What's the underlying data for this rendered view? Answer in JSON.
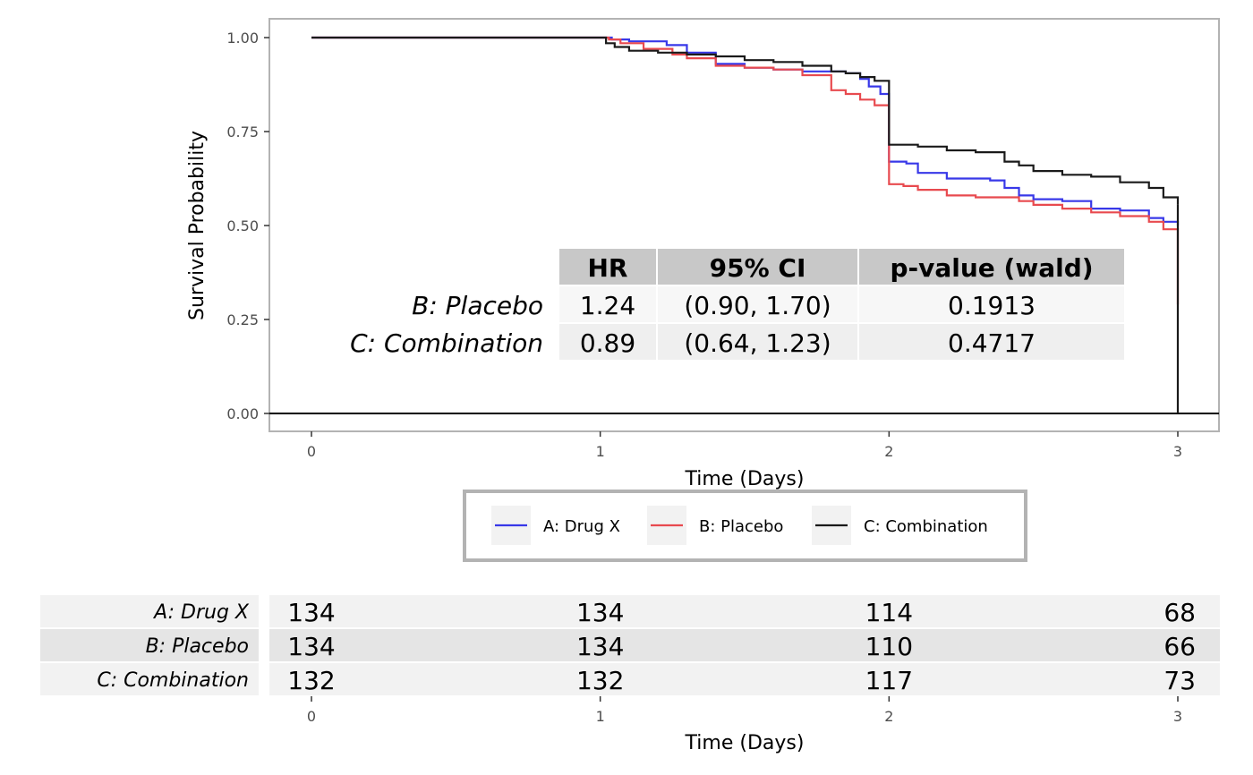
{
  "chart_data": {
    "type": "line",
    "xlabel": "Time (Days)",
    "ylabel": "Survival Probability",
    "xlim": [
      0,
      3
    ],
    "ylim": [
      0,
      1
    ],
    "x_ticks": [
      "0",
      "1",
      "2",
      "3"
    ],
    "y_ticks": [
      "0.00",
      "0.25",
      "0.50",
      "0.75",
      "1.00"
    ],
    "grid": false,
    "legend": "bottom",
    "colors": {
      "A: Drug X": "#3838e8",
      "B: Placebo": "#e84a4f",
      "C: Combination": "#1a1a1a"
    },
    "series": [
      {
        "name": "A: Drug X",
        "color": "#3838e8",
        "x": [
          0,
          1.0,
          1.04,
          1.1,
          1.2,
          1.23,
          1.3,
          1.4,
          1.5,
          1.6,
          1.7,
          1.8,
          1.85,
          1.9,
          1.93,
          1.97,
          2.0,
          2.06,
          2.1,
          2.2,
          2.35,
          2.4,
          2.45,
          2.5,
          2.6,
          2.7,
          2.8,
          2.9,
          2.95,
          3.0
        ],
        "y": [
          1.0,
          1.0,
          0.995,
          0.99,
          0.99,
          0.98,
          0.96,
          0.93,
          0.92,
          0.915,
          0.91,
          0.91,
          0.905,
          0.89,
          0.87,
          0.85,
          0.67,
          0.665,
          0.64,
          0.625,
          0.62,
          0.6,
          0.58,
          0.57,
          0.565,
          0.545,
          0.54,
          0.52,
          0.51,
          0.5
        ]
      },
      {
        "name": "B: Placebo",
        "color": "#e84a4f",
        "x": [
          0,
          1.0,
          1.03,
          1.07,
          1.15,
          1.25,
          1.3,
          1.4,
          1.5,
          1.6,
          1.7,
          1.8,
          1.85,
          1.9,
          1.95,
          2.0,
          2.05,
          2.1,
          2.2,
          2.3,
          2.45,
          2.5,
          2.6,
          2.7,
          2.8,
          2.9,
          2.95,
          3.0
        ],
        "y": [
          1.0,
          1.0,
          0.995,
          0.985,
          0.97,
          0.955,
          0.945,
          0.925,
          0.92,
          0.915,
          0.9,
          0.86,
          0.85,
          0.835,
          0.82,
          0.61,
          0.605,
          0.595,
          0.58,
          0.575,
          0.565,
          0.555,
          0.545,
          0.535,
          0.525,
          0.51,
          0.49,
          0.29
        ]
      },
      {
        "name": "C: Combination",
        "color": "#1a1a1a",
        "x": [
          0,
          1.0,
          1.02,
          1.05,
          1.1,
          1.2,
          1.3,
          1.4,
          1.5,
          1.6,
          1.7,
          1.8,
          1.85,
          1.9,
          1.95,
          2.0,
          2.1,
          2.2,
          2.3,
          2.4,
          2.45,
          2.5,
          2.6,
          2.7,
          2.8,
          2.9,
          2.95,
          3.0
        ],
        "y": [
          1.0,
          1.0,
          0.985,
          0.975,
          0.965,
          0.96,
          0.955,
          0.95,
          0.94,
          0.935,
          0.925,
          0.91,
          0.905,
          0.895,
          0.885,
          0.715,
          0.71,
          0.7,
          0.695,
          0.67,
          0.66,
          0.645,
          0.635,
          0.63,
          0.615,
          0.6,
          0.575,
          0.555
        ]
      }
    ],
    "hr_table": {
      "headers": [
        "HR",
        "95% CI",
        "p-value (wald)"
      ],
      "rows": [
        {
          "label": "B: Placebo",
          "hr": "1.24",
          "ci": "(0.90, 1.70)",
          "p": "0.1913"
        },
        {
          "label": "C: Combination",
          "hr": "0.89",
          "ci": "(0.64, 1.23)",
          "p": "0.4717"
        }
      ]
    },
    "risk_table": {
      "xlabel": "Time (Days)",
      "times": [
        "0",
        "1",
        "2",
        "3"
      ],
      "rows": [
        {
          "label": "A: Drug X",
          "counts": [
            "134",
            "134",
            "114",
            "68"
          ]
        },
        {
          "label": "B: Placebo",
          "counts": [
            "134",
            "134",
            "110",
            "66"
          ]
        },
        {
          "label": "C: Combination",
          "counts": [
            "132",
            "132",
            "117",
            "73"
          ]
        }
      ]
    }
  }
}
